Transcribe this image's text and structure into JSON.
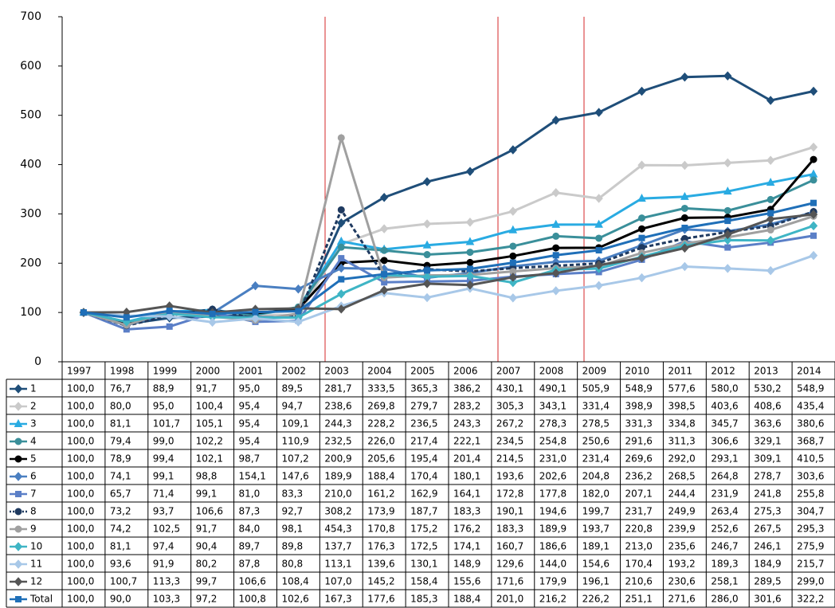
{
  "chart_data": {
    "type": "line",
    "categories": [
      "1997",
      "1998",
      "1999",
      "2000",
      "2001",
      "2002",
      "2003",
      "2004",
      "2005",
      "2006",
      "2007",
      "2008",
      "2009",
      "2010",
      "2011",
      "2012",
      "2013",
      "2014"
    ],
    "ylim": [
      0,
      700
    ],
    "yticks": [
      0,
      100,
      200,
      300,
      400,
      500,
      600,
      700
    ],
    "grid": false,
    "series": [
      {
        "name": "1",
        "color": "#1f4e79",
        "marker": "diamond",
        "values": [
          100.0,
          76.7,
          88.9,
          91.7,
          95.0,
          89.5,
          281.7,
          333.5,
          365.3,
          386.2,
          430.1,
          490.1,
          505.9,
          548.9,
          577.6,
          580.0,
          530.2,
          548.9
        ],
        "value_labels": [
          "100,0",
          "76,7",
          "88,9",
          "91,7",
          "95,0",
          "89,5",
          "281,7",
          "333,5",
          "365,3",
          "386,2",
          "430,1",
          "490,1",
          "505,9",
          "548,9",
          "577,6",
          "580,0",
          "530,2",
          "548,9"
        ]
      },
      {
        "name": "2",
        "color": "#cacaca",
        "marker": "diamond",
        "values": [
          100.0,
          80.0,
          95.0,
          100.4,
          95.4,
          94.7,
          238.6,
          269.8,
          279.7,
          283.2,
          305.3,
          343.1,
          331.4,
          398.9,
          398.5,
          403.6,
          408.6,
          435.4
        ],
        "value_labels": [
          "100,0",
          "80,0",
          "95,0",
          "100,4",
          "95,4",
          "94,7",
          "238,6",
          "269,8",
          "279,7",
          "283,2",
          "305,3",
          "343,1",
          "331,4",
          "398,9",
          "398,5",
          "403,6",
          "408,6",
          "435,4"
        ]
      },
      {
        "name": "3",
        "color": "#29abe2",
        "marker": "triangle",
        "values": [
          100.0,
          81.1,
          101.7,
          105.1,
          95.4,
          109.1,
          244.3,
          228.2,
          236.5,
          243.3,
          267.2,
          278.3,
          278.5,
          331.3,
          334.8,
          345.7,
          363.6,
          380.6
        ],
        "value_labels": [
          "100,0",
          "81,1",
          "101,7",
          "105,1",
          "95,4",
          "109,1",
          "244,3",
          "228,2",
          "236,5",
          "243,3",
          "267,2",
          "278,3",
          "278,5",
          "331,3",
          "334,8",
          "345,7",
          "363,6",
          "380,6"
        ]
      },
      {
        "name": "4",
        "color": "#3a8f9a",
        "marker": "circle",
        "values": [
          100.0,
          79.4,
          99.0,
          102.2,
          95.4,
          110.9,
          232.5,
          226.0,
          217.4,
          222.1,
          234.5,
          254.8,
          250.6,
          291.6,
          311.3,
          306.6,
          329.1,
          368.7
        ],
        "value_labels": [
          "100,0",
          "79,4",
          "99,0",
          "102,2",
          "95,4",
          "110,9",
          "232,5",
          "226,0",
          "217,4",
          "222,1",
          "234,5",
          "254,8",
          "250,6",
          "291,6",
          "311,3",
          "306,6",
          "329,1",
          "368,7"
        ]
      },
      {
        "name": "5",
        "color": "#000000",
        "marker": "circle",
        "values": [
          100.0,
          78.9,
          99.4,
          102.1,
          98.7,
          107.2,
          200.9,
          205.6,
          195.4,
          201.4,
          214.5,
          231.0,
          231.4,
          269.6,
          292.0,
          293.1,
          309.1,
          410.5
        ],
        "value_labels": [
          "100,0",
          "78,9",
          "99,4",
          "102,1",
          "98,7",
          "107,2",
          "200,9",
          "205,6",
          "195,4",
          "201,4",
          "214,5",
          "231,0",
          "231,4",
          "269,6",
          "292,0",
          "293,1",
          "309,1",
          "410,5"
        ]
      },
      {
        "name": "6",
        "color": "#4a7fc1",
        "marker": "diamond",
        "values": [
          100.0,
          74.1,
          99.1,
          98.8,
          154.1,
          147.6,
          189.9,
          188.4,
          170.4,
          180.1,
          193.6,
          202.6,
          204.8,
          236.2,
          268.5,
          264.8,
          278.7,
          303.6
        ],
        "value_labels": [
          "100,0",
          "74,1",
          "99,1",
          "98,8",
          "154,1",
          "147,6",
          "189,9",
          "188,4",
          "170,4",
          "180,1",
          "193,6",
          "202,6",
          "204,8",
          "236,2",
          "268,5",
          "264,8",
          "278,7",
          "303,6"
        ]
      },
      {
        "name": "7",
        "color": "#5b7fc7",
        "marker": "square",
        "values": [
          100.0,
          65.7,
          71.4,
          99.1,
          81.0,
          83.3,
          210.0,
          161.2,
          162.9,
          164.1,
          172.8,
          177.8,
          182.0,
          207.1,
          244.4,
          231.9,
          241.8,
          255.8
        ],
        "value_labels": [
          "100,0",
          "65,7",
          "71,4",
          "99,1",
          "81,0",
          "83,3",
          "210,0",
          "161,2",
          "162,9",
          "164,1",
          "172,8",
          "177,8",
          "182,0",
          "207,1",
          "244,4",
          "231,9",
          "241,8",
          "255,8"
        ]
      },
      {
        "name": "8",
        "color": "#1f3a60",
        "marker": "circle",
        "dashed": true,
        "values": [
          100.0,
          73.2,
          93.7,
          106.6,
          87.3,
          92.7,
          308.2,
          173.9,
          187.7,
          183.3,
          190.1,
          194.6,
          199.7,
          231.7,
          249.9,
          263.4,
          275.3,
          304.7
        ],
        "value_labels": [
          "100,0",
          "73,2",
          "93,7",
          "106,6",
          "87,3",
          "92,7",
          "308,2",
          "173,9",
          "187,7",
          "183,3",
          "190,1",
          "194,6",
          "199,7",
          "231,7",
          "249,9",
          "263,4",
          "275,3",
          "304,7"
        ]
      },
      {
        "name": "9",
        "color": "#a0a0a0",
        "marker": "circle",
        "values": [
          100.0,
          74.2,
          102.5,
          91.7,
          84.0,
          98.1,
          454.3,
          170.8,
          175.2,
          176.2,
          183.3,
          189.9,
          193.7,
          220.8,
          239.9,
          252.6,
          267.5,
          295.3
        ],
        "value_labels": [
          "100,0",
          "74,2",
          "102,5",
          "91,7",
          "84,0",
          "98,1",
          "454,3",
          "170,8",
          "175,2",
          "176,2",
          "183,3",
          "189,9",
          "193,7",
          "220,8",
          "239,9",
          "252,6",
          "267,5",
          "295,3"
        ]
      },
      {
        "name": "10",
        "color": "#3fb5c5",
        "marker": "diamond",
        "values": [
          100.0,
          81.1,
          97.4,
          90.4,
          89.7,
          89.8,
          137.7,
          176.3,
          172.5,
          174.1,
          160.7,
          186.6,
          189.1,
          213.0,
          235.6,
          246.7,
          246.1,
          275.9
        ],
        "value_labels": [
          "100,0",
          "81,1",
          "97,4",
          "90,4",
          "89,7",
          "89,8",
          "137,7",
          "176,3",
          "172,5",
          "174,1",
          "160,7",
          "186,6",
          "189,1",
          "213,0",
          "235,6",
          "246,7",
          "246,1",
          "275,9"
        ]
      },
      {
        "name": "11",
        "color": "#a8c8e8",
        "marker": "diamond",
        "values": [
          100.0,
          93.6,
          91.9,
          80.2,
          87.8,
          80.8,
          113.1,
          139.6,
          130.1,
          148.9,
          129.6,
          144.0,
          154.6,
          170.4,
          193.2,
          189.3,
          184.9,
          215.7
        ],
        "value_labels": [
          "100,0",
          "93,6",
          "91,9",
          "80,2",
          "87,8",
          "80,8",
          "113,1",
          "139,6",
          "130,1",
          "148,9",
          "129,6",
          "144,0",
          "154,6",
          "170,4",
          "193,2",
          "189,3",
          "184,9",
          "215,7"
        ]
      },
      {
        "name": "12",
        "color": "#555555",
        "marker": "diamond",
        "values": [
          100.0,
          100.7,
          113.3,
          99.7,
          106.6,
          108.4,
          107.0,
          145.2,
          158.4,
          155.6,
          171.6,
          179.9,
          196.1,
          210.6,
          230.6,
          258.1,
          289.5,
          299.0
        ],
        "value_labels": [
          "100,0",
          "100,7",
          "113,3",
          "99,7",
          "106,6",
          "108,4",
          "107,0",
          "145,2",
          "158,4",
          "155,6",
          "171,6",
          "179,9",
          "196,1",
          "210,6",
          "230,6",
          "258,1",
          "289,5",
          "299,0"
        ]
      },
      {
        "name": "Total",
        "color": "#1f6fb8",
        "marker": "square",
        "values": [
          100.0,
          90.0,
          103.3,
          97.2,
          100.8,
          102.6,
          167.3,
          177.6,
          185.3,
          188.4,
          201.0,
          216.2,
          226.2,
          251.1,
          271.6,
          286.0,
          301.6,
          322.2
        ],
        "value_labels": [
          "100,0",
          "90,0",
          "103,3",
          "97,2",
          "100,8",
          "102,6",
          "167,3",
          "177,6",
          "185,3",
          "188,4",
          "201,0",
          "216,2",
          "226,2",
          "251,1",
          "271,6",
          "286,0",
          "301,6",
          "322,2"
        ]
      }
    ]
  }
}
